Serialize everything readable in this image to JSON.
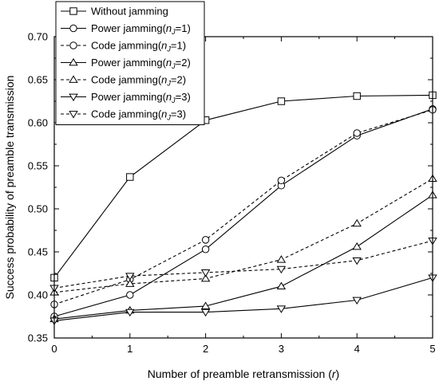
{
  "chart_data": {
    "type": "line",
    "title": "",
    "xlabel": "Number of preamble retransmission (r)",
    "ylabel": "Success probability of preamble transmission",
    "xlim": [
      0,
      5
    ],
    "ylim": [
      0.35,
      0.7
    ],
    "x_ticks": [
      0,
      1,
      2,
      3,
      4,
      5
    ],
    "y_ticks": [
      0.35,
      0.4,
      0.45,
      0.5,
      0.55,
      0.6,
      0.65,
      0.7
    ],
    "grid": false,
    "legend_position": "top-left",
    "x": [
      0,
      1,
      2,
      3,
      4,
      5
    ],
    "series": [
      {
        "name": "Without jamming",
        "style": "solid",
        "marker": "square",
        "values": [
          0.42,
          0.537,
          0.603,
          0.625,
          0.631,
          0.632
        ]
      },
      {
        "name": "Power jamming(nJ=1)",
        "style": "solid",
        "marker": "circle",
        "values": [
          0.375,
          0.4,
          0.453,
          0.527,
          0.585,
          0.616
        ]
      },
      {
        "name": "Code jamming(nJ=1)",
        "style": "dashed",
        "marker": "circle",
        "values": [
          0.389,
          0.418,
          0.464,
          0.533,
          0.588,
          0.615
        ]
      },
      {
        "name": "Power jamming(nJ=2)",
        "style": "solid",
        "marker": "triangle-up",
        "values": [
          0.372,
          0.382,
          0.387,
          0.41,
          0.456,
          0.516
        ]
      },
      {
        "name": "Code jamming(nJ=2)",
        "style": "dashed",
        "marker": "triangle-up",
        "values": [
          0.403,
          0.413,
          0.419,
          0.441,
          0.483,
          0.535
        ]
      },
      {
        "name": "Power jamming(nJ=3)",
        "style": "solid",
        "marker": "triangle-down",
        "values": [
          0.37,
          0.38,
          0.38,
          0.384,
          0.394,
          0.42
        ]
      },
      {
        "name": "Code jamming(nJ=3)",
        "style": "dashed",
        "marker": "triangle-down",
        "values": [
          0.408,
          0.422,
          0.426,
          0.43,
          0.44,
          0.463
        ]
      }
    ],
    "legend_entries": [
      {
        "prefix": "Without jamming",
        "sub": "",
        "suffix": ""
      },
      {
        "prefix": "Power jamming(",
        "sub": "J",
        "suffix": "=1)"
      },
      {
        "prefix": "Code jamming(",
        "sub": "J",
        "suffix": "=1)"
      },
      {
        "prefix": "Power jamming(",
        "sub": "J",
        "suffix": "=2)"
      },
      {
        "prefix": "Code jamming(",
        "sub": "J",
        "suffix": "=2)"
      },
      {
        "prefix": "Power jamming(",
        "sub": "J",
        "suffix": "=3)"
      },
      {
        "prefix": "Code jamming(",
        "sub": "J",
        "suffix": "=3)"
      }
    ],
    "colors": {
      "line": "#000000",
      "marker_fill": "#ffffff",
      "background": "#ffffff"
    }
  }
}
